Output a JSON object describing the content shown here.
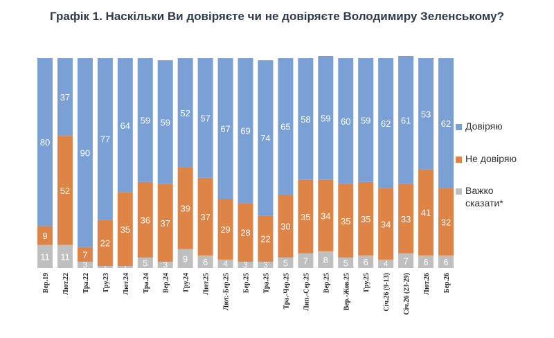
{
  "chart_data": {
    "type": "bar",
    "stacked": true,
    "title": "Графік 1. Наскільки Ви довіряєте чи не довіряєте Володимиру Зеленському?",
    "categories": [
      "Вер.19",
      "Лют.22",
      "Тра.22",
      "Гру.23",
      "Лют.24",
      "Тра.24",
      "Вер.24",
      "Гру.24",
      "Лют.25",
      "Лют.-Бер.25",
      "Бер.25",
      "Тра.25",
      "Тра.-Чер.25",
      "Лип.-Сер.25",
      "Вер.25",
      "Вер.-Жов.25",
      "Гру.25",
      "Січ.26 (9-13)",
      "Січ.26 (23-29)",
      "Лют.26",
      "Бер.26"
    ],
    "series": [
      {
        "name": "Важко сказати*",
        "color": "#bfbfbf",
        "values": [
          11,
          11,
          3,
          1,
          1,
          5,
          3,
          9,
          6,
          4,
          3,
          3,
          5,
          7,
          8,
          5,
          6,
          4,
          7,
          6,
          6
        ]
      },
      {
        "name": "Не довіряю",
        "color": "#dd8446",
        "values": [
          9,
          52,
          7,
          22,
          35,
          36,
          37,
          39,
          37,
          29,
          28,
          22,
          30,
          35,
          34,
          35,
          35,
          34,
          33,
          41,
          32
        ]
      },
      {
        "name": "Довіряю",
        "color": "#7ba0d6",
        "values": [
          80,
          37,
          90,
          77,
          64,
          59,
          59,
          52,
          57,
          67,
          69,
          74,
          65,
          58,
          59,
          60,
          59,
          62,
          61,
          53,
          62
        ]
      }
    ],
    "legend": [
      "Довіряю",
      "Не довіряю",
      "Важко сказати*"
    ],
    "legend_position": "right",
    "ylim": [
      0,
      100
    ]
  }
}
